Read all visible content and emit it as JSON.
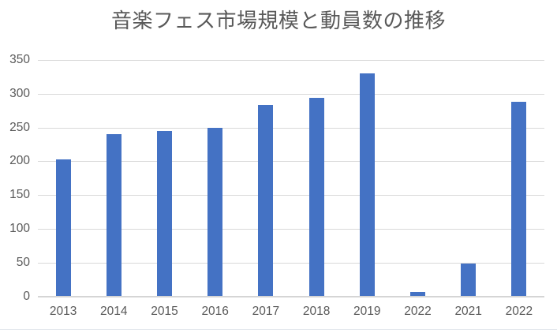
{
  "chart_data": {
    "type": "bar",
    "title": "音楽フェス市場規模と動員数の推移",
    "categories": [
      "2013",
      "2014",
      "2015",
      "2016",
      "2017",
      "2018",
      "2019",
      "2022",
      "2021",
      "2022"
    ],
    "values": [
      203,
      240,
      245,
      249,
      283,
      294,
      330,
      7,
      48,
      288
    ],
    "xlabel": "",
    "ylabel": "",
    "ylim": [
      0,
      350
    ],
    "yticks": [
      0,
      50,
      100,
      150,
      200,
      250,
      300,
      350
    ],
    "grid": true,
    "legend_position": "none",
    "colors": {
      "bar": "#4472C4",
      "gridline": "#D9D9D9",
      "axis_line": "#D5D5D5",
      "tick_text": "#595959",
      "title_text": "#595959",
      "background": "#FFFFFF",
      "sheet_border": "#E3E7ED"
    }
  }
}
